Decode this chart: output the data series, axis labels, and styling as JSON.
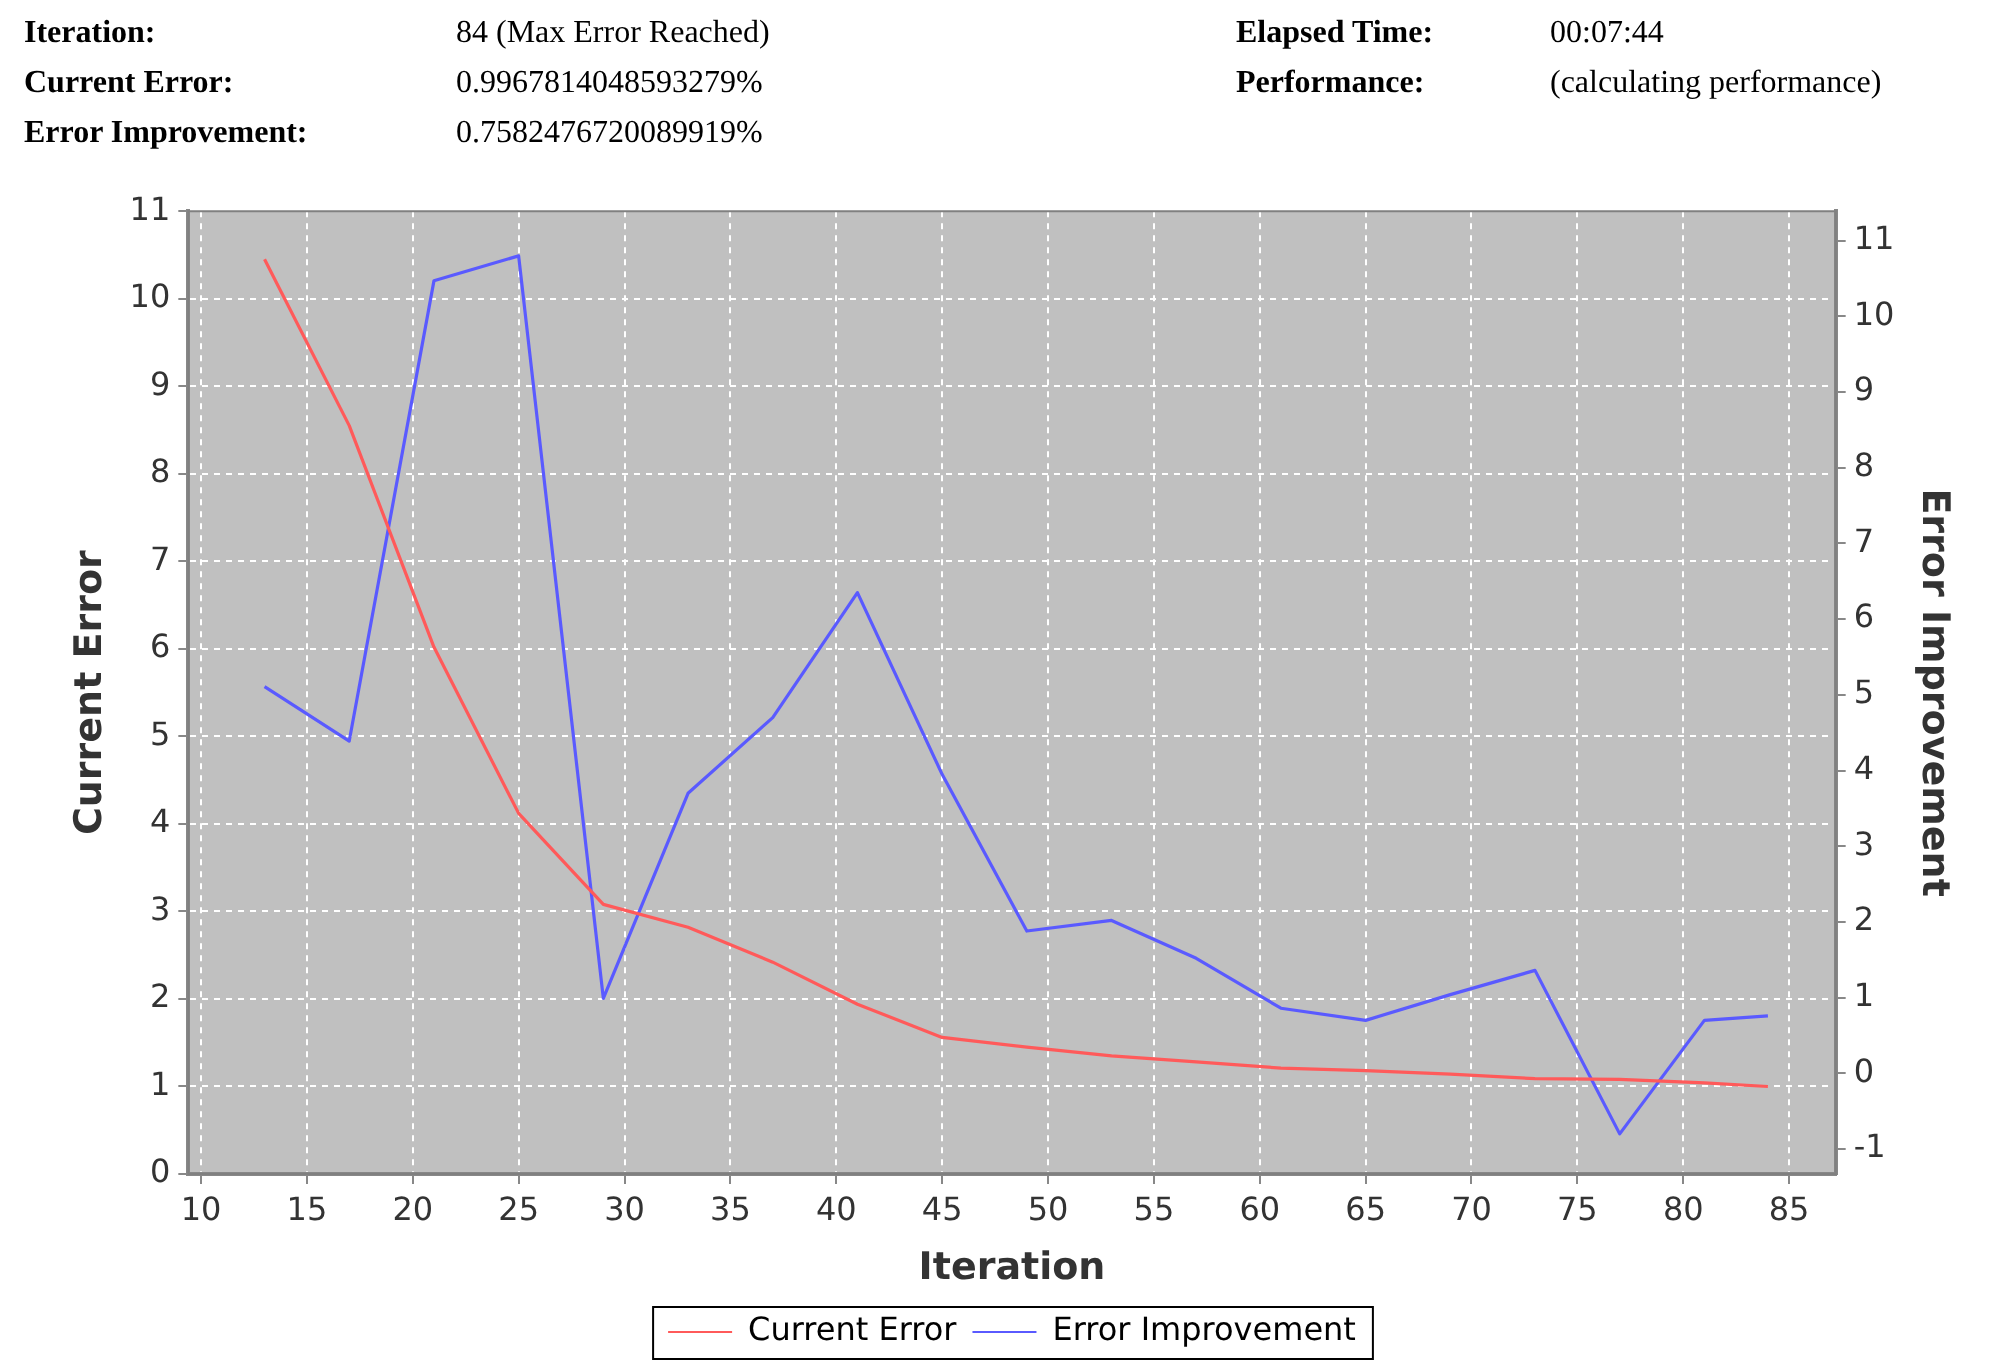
{
  "chart_data": {
    "type": "line",
    "xlabel": "Iteration",
    "ylabel": "Current Error",
    "y2label": "Error Improvement",
    "annotations": [
      "Iteration:",
      "84 (Max Error Reached)",
      "Elapsed Time:",
      "00:07:44",
      "Current Error:",
      "0.9967814048593279%",
      "Performance:",
      "(calculating performance)",
      "Error Improvement:",
      "0.7582476720089919%"
    ],
    "x": [
      13,
      17,
      21,
      25,
      29,
      33,
      37,
      41,
      45,
      49,
      53,
      57,
      61,
      65,
      69,
      73,
      77,
      81,
      84
    ],
    "series": [
      {
        "name": "Current Error",
        "color": "#ff5a5a",
        "values": [
          10.45,
          8.55,
          6.02,
          4.12,
          3.08,
          2.82,
          2.42,
          1.94,
          1.56,
          1.45,
          1.35,
          1.28,
          1.21,
          1.18,
          1.14,
          1.09,
          1.08,
          1.04,
          1.0
        ]
      },
      {
        "name": "Error Improvement",
        "color": "#5a5aff",
        "axis": "y2",
        "values": [
          5.11,
          4.39,
          10.47,
          10.8,
          0.99,
          3.7,
          4.7,
          6.35,
          3.95,
          1.88,
          2.02,
          1.52,
          0.86,
          0.7,
          1.04,
          1.36,
          -0.8,
          0.7,
          0.76
        ]
      }
    ],
    "xlim": [
      9.4,
      87.2
    ],
    "xticks": [
      10,
      15,
      20,
      25,
      30,
      35,
      40,
      45,
      50,
      55,
      60,
      65,
      70,
      75,
      80,
      85
    ],
    "ylim": [
      0,
      11
    ],
    "yticks": [
      0,
      1,
      2,
      3,
      4,
      5,
      6,
      7,
      8,
      9,
      10,
      11
    ],
    "y2lim": [
      -1.33,
      11.39
    ],
    "y2ticks": [
      -1,
      0,
      1,
      2,
      3,
      4,
      5,
      6,
      7,
      8,
      9,
      10,
      11
    ],
    "grid": true,
    "legend": "bottom",
    "marker": "none",
    "line_style": "solid"
  }
}
